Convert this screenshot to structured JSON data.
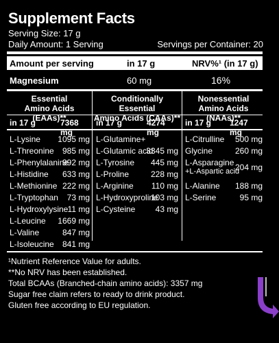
{
  "header": {
    "title": "Supplement Facts",
    "serving_size": "Serving Size: 17 g",
    "daily_amount": "Daily Amount: 1 Serving",
    "servings_per_container": "Servings per Container: 20"
  },
  "amount_header": {
    "label": "Amount per serving",
    "in": "in 17 g",
    "nrv": "NRV%¹ (in 17 g)"
  },
  "magnesium": {
    "label": "Magnesium",
    "amount": "60 mg",
    "nrv": "16%"
  },
  "columns": [
    {
      "title_line1": "Essential",
      "title_line2": "Amino Acids (EAAs)**",
      "sub_in": "in 17 g",
      "sub_total": "7368 mg",
      "items": [
        {
          "name": "L-Lysine",
          "value": "1095 mg"
        },
        {
          "name": "L-Threonine",
          "value": "985 mg"
        },
        {
          "name": "L-Phenylalanine",
          "value": "992 mg"
        },
        {
          "name": "L-Histidine",
          "value": "633 mg"
        },
        {
          "name": "L-Methionine",
          "value": "222 mg"
        },
        {
          "name": "L-Tryptophan",
          "value": "73 mg"
        },
        {
          "name": "L-Hydroxylysine",
          "value": "11 mg"
        },
        {
          "name": "L-Leucine",
          "value": "1669 mg"
        },
        {
          "name": "L-Valine",
          "value": "847 mg"
        },
        {
          "name": "L-Isoleucine",
          "value": "841 mg"
        }
      ]
    },
    {
      "title_line1": "Conditionally Essential",
      "title_line2": "Amino Acids (CAAs)**",
      "sub_in": "in 17 g",
      "sub_total": "4274 mg",
      "items": [
        {
          "name": "L-Glutamine+",
          "value": ""
        },
        {
          "name": "L-Glutamic acid",
          "value": "3345 mg"
        },
        {
          "name": "L-Tyrosine",
          "value": "445 mg"
        },
        {
          "name": "L-Proline",
          "value": "228 mg"
        },
        {
          "name": "L-Arginine",
          "value": "110 mg"
        },
        {
          "name": "L-Hydroxyproline",
          "value": "103 mg"
        },
        {
          "name": "L-Cysteine",
          "value": "43 mg"
        }
      ]
    },
    {
      "title_line1": "Nonessential",
      "title_line2": "Amino Acids (NAAs)**",
      "sub_in": "in 17 g",
      "sub_total": "1247 mg",
      "items": [
        {
          "name": "L-Citrulline",
          "value": "500 mg"
        },
        {
          "name": "Glycine",
          "value": "260 mg"
        },
        {
          "name": "L-Asparagine",
          "name2": "+L-Aspartic acid",
          "value": "204 mg"
        },
        {
          "name": "L-Alanine",
          "value": "188 mg"
        },
        {
          "name": "L-Serine",
          "value": "95 mg"
        }
      ]
    }
  ],
  "footnotes": [
    "¹Nutrient Reference Value for adults.",
    "**No NRV has been established.",
    "Total BCAAs (Branched-chain amino acids): 3357 mg",
    "Sugar free claim refers to ready to drink product.",
    "Gluten free according to EU regulation."
  ],
  "colors": {
    "background": "#000000",
    "text": "#ffffff",
    "accent": "#8a3fc9"
  }
}
